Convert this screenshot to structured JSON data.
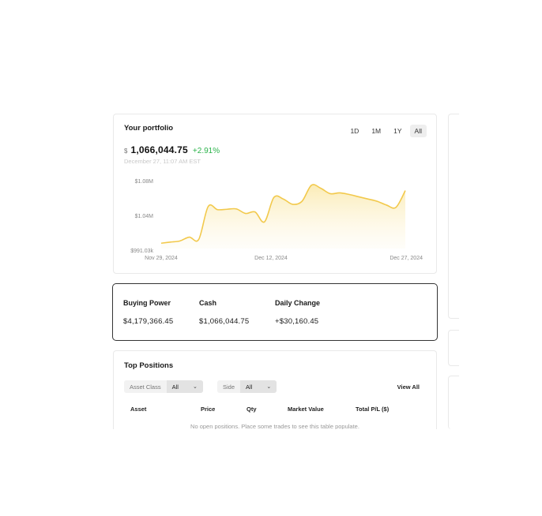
{
  "portfolio": {
    "title": "Your portfolio",
    "ranges": [
      "1D",
      "1M",
      "1Y",
      "All"
    ],
    "active_range": "All",
    "currency_symbol": "$",
    "balance": "1,066,044.75",
    "change": "+2.91%",
    "timestamp": "December 27, 11:07 AM EST"
  },
  "chart_data": {
    "type": "area",
    "y_tick_labels": [
      "$1.08M",
      "$1.04M",
      "$991.03k"
    ],
    "x_tick_labels": [
      "Nov 29, 2024",
      "Dec 12, 2024",
      "Dec 27, 2024"
    ],
    "ylim": [
      991030,
      1080000
    ],
    "x": [
      "Nov 29",
      "Dec 1",
      "Dec 3",
      "Dec 4",
      "Dec 5",
      "Dec 6",
      "Dec 7",
      "Dec 8",
      "Dec 9",
      "Dec 10",
      "Dec 11",
      "Dec 12",
      "Dec 13",
      "Dec 14",
      "Dec 15",
      "Dec 16",
      "Dec 17",
      "Dec 18",
      "Dec 19",
      "Dec 20",
      "Dec 21",
      "Dec 22",
      "Dec 23",
      "Dec 24",
      "Dec 25",
      "Dec 26",
      "Dec 27"
    ],
    "values": [
      998000,
      999500,
      1001000,
      1006000,
      1003000,
      1046000,
      1042000,
      1042500,
      1043000,
      1037000,
      1039000,
      1026000,
      1058000,
      1056000,
      1049000,
      1053000,
      1074000,
      1070000,
      1063000,
      1064000,
      1062000,
      1059000,
      1056000,
      1053000,
      1048000,
      1045000,
      1067000
    ],
    "line_color": "#f2c94c",
    "fill_color": "#fdf3d2",
    "grid": false
  },
  "stats": {
    "buying_power": {
      "label": "Buying Power",
      "value": "$4,179,366.45"
    },
    "cash": {
      "label": "Cash",
      "value": "$1,066,044.75"
    },
    "daily_change": {
      "label": "Daily Change",
      "value": "+$30,160.45"
    }
  },
  "positions": {
    "title": "Top Positions",
    "asset_class_label": "Asset Class",
    "asset_class_value": "All",
    "side_label": "Side",
    "side_value": "All",
    "view_all": "View All",
    "columns": [
      "Asset",
      "Price",
      "Qty",
      "Market Value",
      "Total P/L ($)"
    ],
    "empty_text": "No open positions. Place some trades to see this table populate."
  },
  "icons": {
    "chevron": "chevron-down-icon"
  }
}
